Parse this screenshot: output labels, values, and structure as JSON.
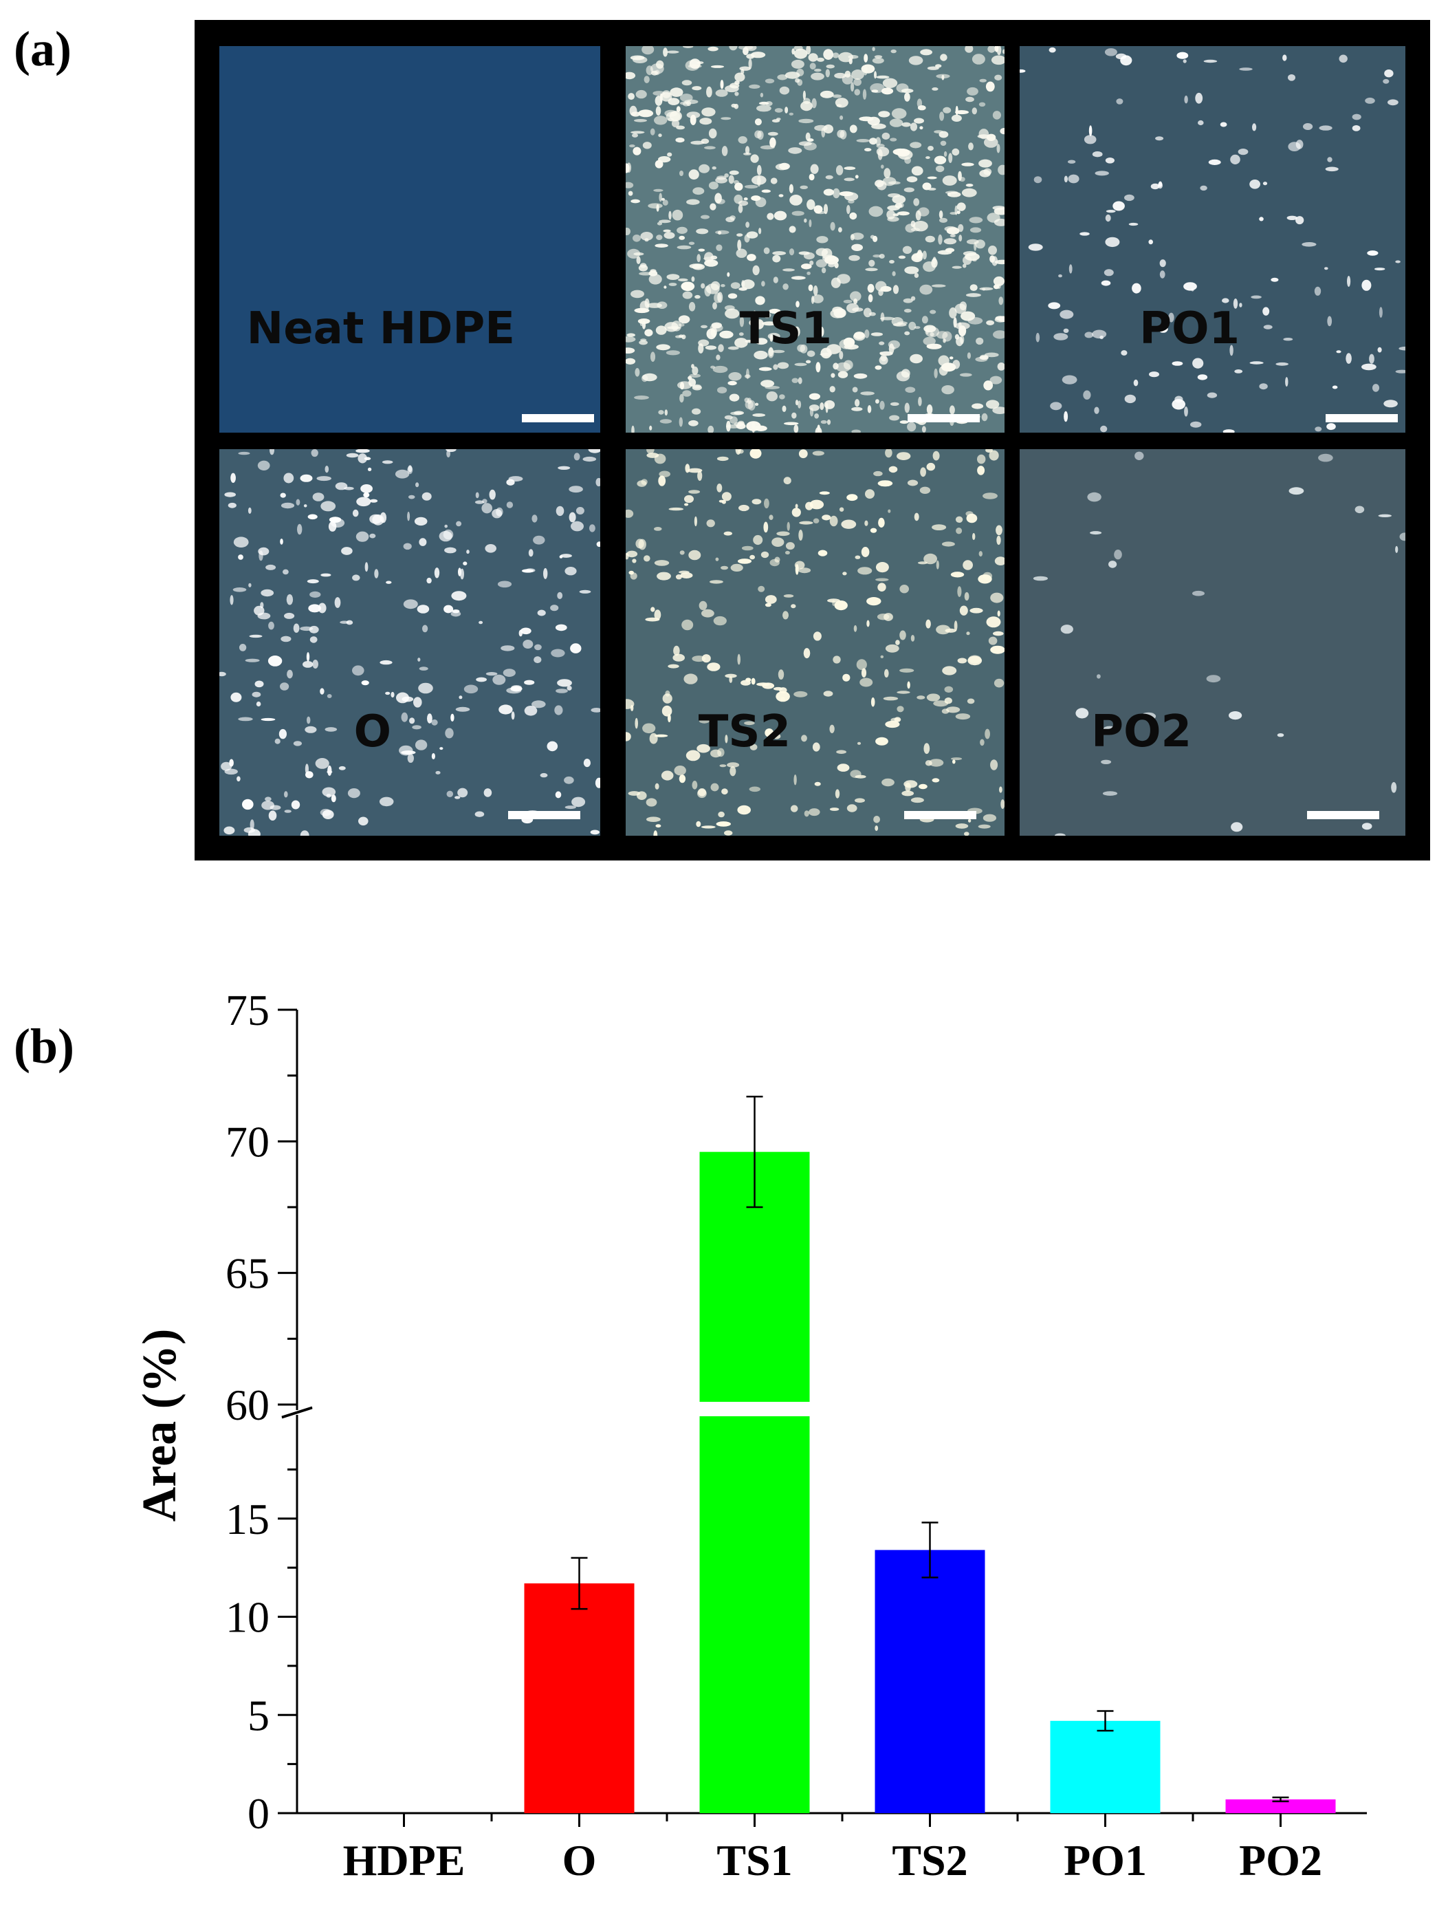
{
  "panel_a": {
    "label": "(a)",
    "tiles": [
      {
        "label": "Neat HDPE",
        "bg": "#1e4873",
        "particle_color": "#ffffff",
        "density": 0
      },
      {
        "label": "TS1",
        "bg": "#5c7a80",
        "particle_color": "#fbfaf0",
        "density": 0.9
      },
      {
        "label": "PO1",
        "bg": "#3a5667",
        "particle_color": "#ffffff",
        "density": 0.15
      },
      {
        "label": "O",
        "bg": "#3f5c6d",
        "particle_color": "#ffffff",
        "density": 0.3
      },
      {
        "label": "TS2",
        "bg": "#4b6770",
        "particle_color": "#fffbe6",
        "density": 0.35
      },
      {
        "label": "PO2",
        "bg": "#465b66",
        "particle_color": "#e8eef0",
        "density": 0.03
      }
    ]
  },
  "panel_b": {
    "label": "(b)"
  },
  "chart_data": {
    "type": "bar",
    "categories": [
      "HDPE",
      "O",
      "TS1",
      "TS2",
      "PO1",
      "PO2"
    ],
    "values": [
      0,
      11.7,
      69.6,
      13.4,
      4.7,
      0.7
    ],
    "errors": [
      0,
      1.3,
      2.1,
      1.4,
      0.5,
      0.1
    ],
    "colors": [
      "#000000",
      "#ff0000",
      "#00ff00",
      "#0000ff",
      "#00ffff",
      "#ff00ff"
    ],
    "ylabel": "Area (%)",
    "xlabel": "",
    "axis_break": [
      20,
      60
    ],
    "y_lower_range": [
      0,
      20
    ],
    "y_upper_range": [
      60,
      75
    ],
    "y_ticks_lower": [
      0,
      5,
      10,
      15
    ],
    "y_ticks_upper": [
      60,
      65,
      70,
      75
    ]
  }
}
